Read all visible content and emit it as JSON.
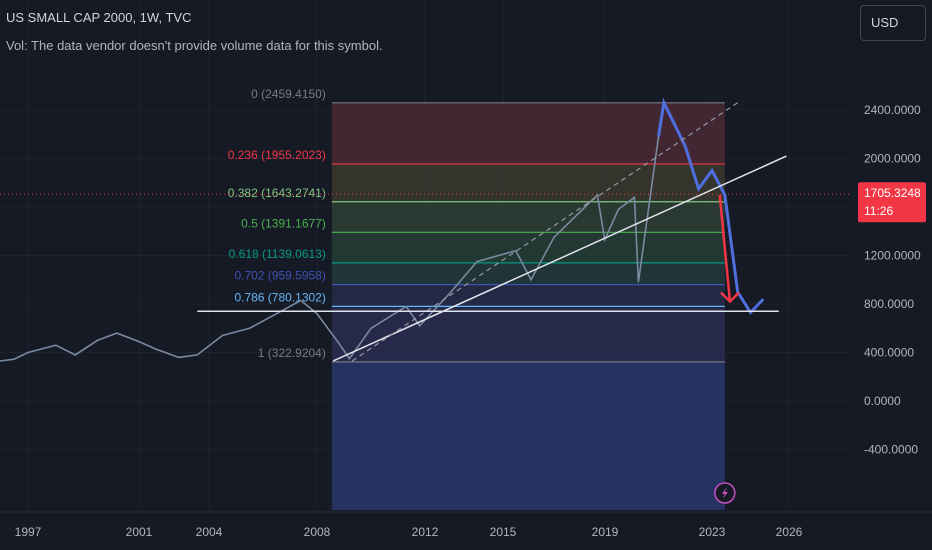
{
  "chart_data": {
    "type": "line",
    "title": "US SMALL CAP 2000, 1W, TVC",
    "subtitle": "Vol: The data vendor doesn't provide volume data for this symbol.",
    "currency": "USD",
    "last_price": "1705.3248",
    "countdown": "11:26",
    "x_ticks": [
      "1997",
      "2001",
      "2004",
      "2008",
      "2012",
      "2015",
      "2019",
      "2023",
      "2026"
    ],
    "y_ticks": [
      "2400.0000",
      "2000.0000",
      "1200.0000",
      "800.0000",
      "400.0000",
      "0.0000",
      "-400.0000"
    ],
    "ylim": [
      -700,
      2800
    ],
    "fib_levels": [
      {
        "label": "0 (2459.4150)",
        "value": 2459.415,
        "color": "#787b86"
      },
      {
        "label": "0.236 (1955.2023)",
        "value": 1955.2023,
        "color": "#f23645"
      },
      {
        "label": "0.382 (1643.2741)",
        "value": 1643.2741,
        "color": "#81c784"
      },
      {
        "label": "0.5 (1391.1677)",
        "value": 1391.1677,
        "color": "#4caf50"
      },
      {
        "label": "0.618 (1139.0613)",
        "value": 1139.0613,
        "color": "#089981"
      },
      {
        "label": "0.702 (959.5958)",
        "value": 959.5958,
        "color": "#3f51b5"
      },
      {
        "label": "0.786 (780.1302)",
        "value": 780.1302,
        "color": "#64b5f6"
      },
      {
        "label": "1 (322.9204)",
        "value": 322.9204,
        "color": "#787b86"
      }
    ],
    "series": [
      {
        "x": [
          1995.0,
          1996.0,
          1997.0,
          1998.0,
          1998.7,
          1999.5,
          2000.2,
          2001.0,
          2001.7,
          2002.7,
          2003.5,
          2004.5,
          2005.5,
          2006.5,
          2007.4,
          2008.0,
          2008.8,
          2009.2,
          2010.0,
          2011.3,
          2011.8,
          2013.0,
          2014.0,
          2015.5,
          2016.1,
          2017.0,
          2018.7,
          2018.99,
          2019.5,
          2020.1,
          2020.25,
          2021.0,
          2021.2,
          2022.0,
          2022.5,
          2023.0,
          2023.5,
          2024.0,
          2024.5,
          2025.0
        ],
        "y": [
          330,
          345,
          400,
          460,
          380,
          500,
          560,
          490,
          430,
          360,
          380,
          540,
          600,
          720,
          830,
          720,
          480,
          350,
          600,
          780,
          620,
          900,
          1150,
          1240,
          1000,
          1350,
          1700,
          1330,
          1580,
          1680,
          980,
          2180,
          2460,
          2100,
          1750,
          1900,
          1700,
          900,
          730,
          840
        ]
      }
    ],
    "trend_line": {
      "from": [
        2008.6,
        330
      ],
      "to": [
        2025.9,
        2020
      ]
    },
    "dashed_line": {
      "from": [
        2009.3,
        330
      ],
      "to": [
        2024.0,
        2460
      ]
    },
    "horizontal_line": {
      "from": [
        2003.5,
        740
      ],
      "to": [
        2025.6,
        740
      ]
    },
    "forecast_arrow": {
      "from": [
        2023.3,
        1700
      ],
      "to": [
        2023.7,
        820
      ]
    },
    "current_line_value": 1705.3248
  }
}
